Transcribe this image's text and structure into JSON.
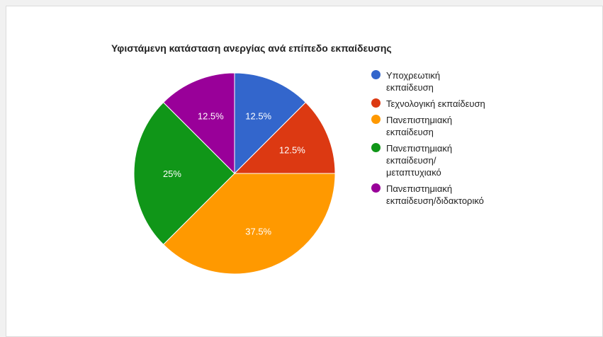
{
  "chart_data": {
    "type": "pie",
    "title": "Υφιστάμενη κατάσταση ανεργίας ανά επίπεδο εκπαίδευσης",
    "legend_position": "right",
    "slices": [
      {
        "label": "Υποχρεωτική\nεκπαίδευση",
        "value": 12.5,
        "value_label": "12.5%",
        "color": "#3366cc"
      },
      {
        "label": "Τεχνολογική εκπαίδευση",
        "value": 12.5,
        "value_label": "12.5%",
        "color": "#dc3912"
      },
      {
        "label": "Πανεπιστημιακή\nεκπαίδευση",
        "value": 37.5,
        "value_label": "37.5%",
        "color": "#ff9900"
      },
      {
        "label": "Πανεπιστημιακή\nεκπαίδευση/\nμεταπτυχιακό",
        "value": 25,
        "value_label": "25%",
        "color": "#109618"
      },
      {
        "label": "Πανεπιστημιακή\nεκπαίδευση/διδακτορικό",
        "value": 12.5,
        "value_label": "12.5%",
        "color": "#990099"
      }
    ]
  }
}
